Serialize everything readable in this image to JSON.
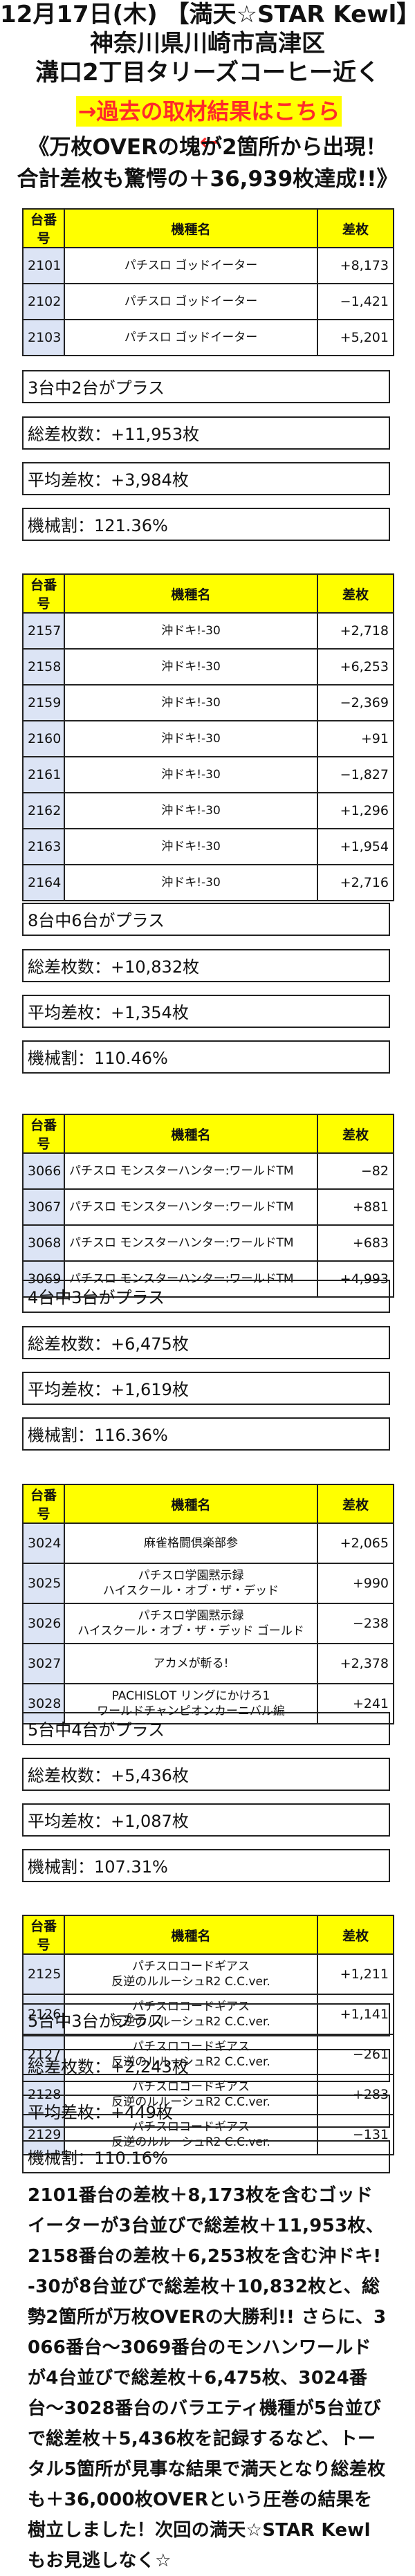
{
  "header": {
    "line1": "12月17日(木) 【満天☆STAR Kewl】",
    "line2": "神奈川県川崎市高津区",
    "line3": "溝口2丁目タリーズコーヒー近く"
  },
  "past_link": "→過去の取材結果はこちら←",
  "headline": {
    "line1": "《万枚OVERの塊が2箇所から出現！",
    "line2": "合計差枚も驚愕の＋36,939枚達成!!》"
  },
  "columns": {
    "no": "台番号",
    "name": "機種名",
    "diff": "差枚"
  },
  "blocks": [
    {
      "rows": [
        {
          "no": "2101",
          "name": "パチスロ ゴッドイーター",
          "diff": "+8,173"
        },
        {
          "no": "2102",
          "name": "パチスロ ゴッドイーター",
          "diff": "−1,421"
        },
        {
          "no": "2103",
          "name": "パチスロ ゴッドイーター",
          "diff": "+5,201"
        }
      ],
      "note": "3台中2台がプラス",
      "total": "総差枚数：+11,953枚",
      "avg": "平均差枚：+3,984枚",
      "rate": "機械割：121.36%"
    },
    {
      "rows": [
        {
          "no": "2157",
          "name": "沖ドキ!-30",
          "diff": "+2,718"
        },
        {
          "no": "2158",
          "name": "沖ドキ!-30",
          "diff": "+6,253"
        },
        {
          "no": "2159",
          "name": "沖ドキ!-30",
          "diff": "−2,369"
        },
        {
          "no": "2160",
          "name": "沖ドキ!-30",
          "diff": "+91"
        },
        {
          "no": "2161",
          "name": "沖ドキ!-30",
          "diff": "−1,827"
        },
        {
          "no": "2162",
          "name": "沖ドキ!-30",
          "diff": "+1,296"
        },
        {
          "no": "2163",
          "name": "沖ドキ!-30",
          "diff": "+1,954"
        },
        {
          "no": "2164",
          "name": "沖ドキ!-30",
          "diff": "+2,716"
        }
      ],
      "note": "8台中6台がプラス",
      "total": "総差枚数：+10,832枚",
      "avg": "平均差枚：+1,354枚",
      "rate": "機械割：110.46%"
    },
    {
      "rows": [
        {
          "no": "3066",
          "name": "パチスロ モンスターハンター:ワールドTM",
          "diff": "−82"
        },
        {
          "no": "3067",
          "name": "パチスロ モンスターハンター:ワールドTM",
          "diff": "+881"
        },
        {
          "no": "3068",
          "name": "パチスロ モンスターハンター:ワールドTM",
          "diff": "+683"
        },
        {
          "no": "3069",
          "name": "パチスロ モンスターハンター:ワールドTM",
          "diff": "+4,993"
        }
      ],
      "note": "4台中3台がプラス",
      "total": "総差枚数：+6,475枚",
      "avg": "平均差枚：+1,619枚",
      "rate": "機械割：116.36%"
    },
    {
      "rows": [
        {
          "no": "3024",
          "name": "麻雀格闘倶楽部参",
          "diff": "+2,065"
        },
        {
          "no": "3025",
          "name": "パチスロ学園黙示録\nハイスクール・オブ・ザ・デッド",
          "diff": "+990"
        },
        {
          "no": "3026",
          "name": "パチスロ学園黙示録\nハイスクール・オブ・ザ・デッド ゴールド",
          "diff": "−238"
        },
        {
          "no": "3027",
          "name": "アカメが斬る!",
          "diff": "+2,378"
        },
        {
          "no": "3028",
          "name": "PACHISLOT リングにかけろ1\nワールドチャンピオンカーニバル編",
          "diff": "+241"
        }
      ],
      "note": "5台中4台がプラス",
      "total": "総差枚数：+5,436枚",
      "avg": "平均差枚：+1,087枚",
      "rate": "機械割：107.31%"
    },
    {
      "rows": [
        {
          "no": "2125",
          "name": "パチスロコードギアス\n反逆のルルーシュR2 C.C.ver.",
          "diff": "+1,211"
        },
        {
          "no": "2126",
          "name": "パチスロコードギアス\n反逆のルルーシュR2 C.C.ver.",
          "diff": "+1,141"
        },
        {
          "no": "2127",
          "name": "パチスロコードギアス\n反逆のルルーシュR2 C.C.ver.",
          "diff": "−261"
        },
        {
          "no": "2128",
          "name": "パチスロコードギアス\n反逆のルルーシュR2 C.C.ver.",
          "diff": "+283"
        },
        {
          "no": "2129",
          "name": "パチスロコードギアス\n反逆のルルーシュR2 C.C.ver.",
          "diff": "−131"
        }
      ],
      "note": "5台中3台がプラス",
      "total": "総差枚数：+2,243枚",
      "avg": "平均差枚：+449枚",
      "rate": "機械割：110.16%"
    }
  ],
  "summary": "2101番台の差枚＋8,173枚を含むゴッドイーターが3台並びで総差枚＋11,953枚、2158番台の差枚＋6,253枚を含む沖ドキ!-30が8台並びで総差枚＋10,832枚と、総勢2箇所が万枚OVERの大勝利!! さらに、3066番台〜3069番台のモンハンワールドが4台並びで総差枚＋6,475枚、3024番台〜3028番台のバラエティ機種が5台並びで総差枚＋5,436枚を記録するなど、トータル5箇所が見事な結果で満天となり総差枚も＋36,000枚OVERという圧巻の結果を樹立しました！次回の満天☆STAR Kewlもお見逃しなく☆"
}
